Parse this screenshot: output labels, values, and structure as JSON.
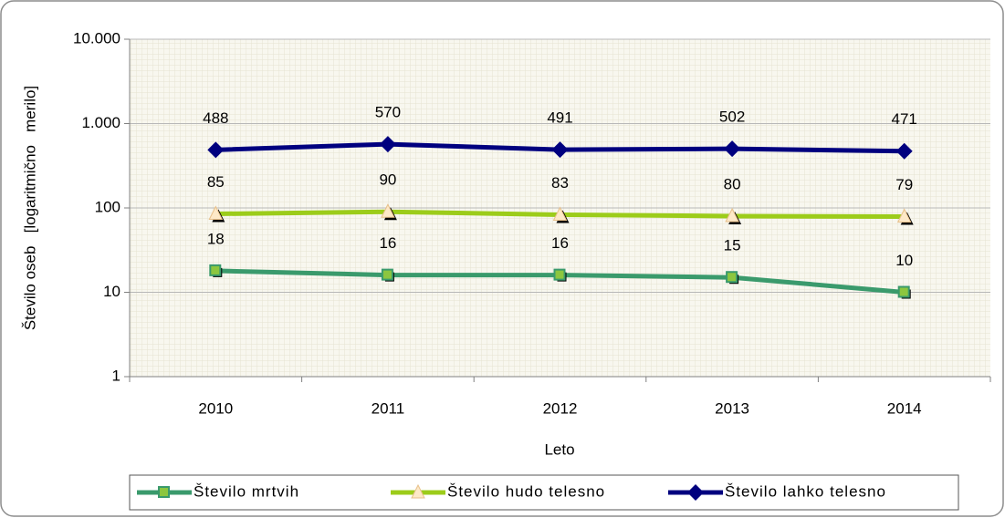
{
  "chart_data": {
    "type": "line",
    "y_label": "Število oseb   [logaritmično   merilo]",
    "x_label": "Leto",
    "categories": [
      "2010",
      "2011",
      "2012",
      "2013",
      "2014"
    ],
    "log_scale": true,
    "grid": true,
    "legend": "bottom",
    "ylim": [
      1,
      10000
    ],
    "yticks": [
      {
        "value": 10000,
        "label": "10.000"
      },
      {
        "value": 1000,
        "label": "1.000"
      },
      100,
      10,
      1
    ],
    "series": [
      {
        "name": "Število mrtvih",
        "color": "#3a9a6c",
        "marker": "square",
        "values": [
          18,
          16,
          16,
          15,
          10
        ]
      },
      {
        "name": "Število hudo telesno",
        "color": "#9ccc1a",
        "marker": "triangle",
        "values": [
          85,
          90,
          83,
          80,
          79
        ]
      },
      {
        "name": "Število lahko telesno",
        "color": "#00007f",
        "marker": "diamond",
        "values": [
          488,
          570,
          491,
          502,
          471
        ]
      }
    ]
  }
}
